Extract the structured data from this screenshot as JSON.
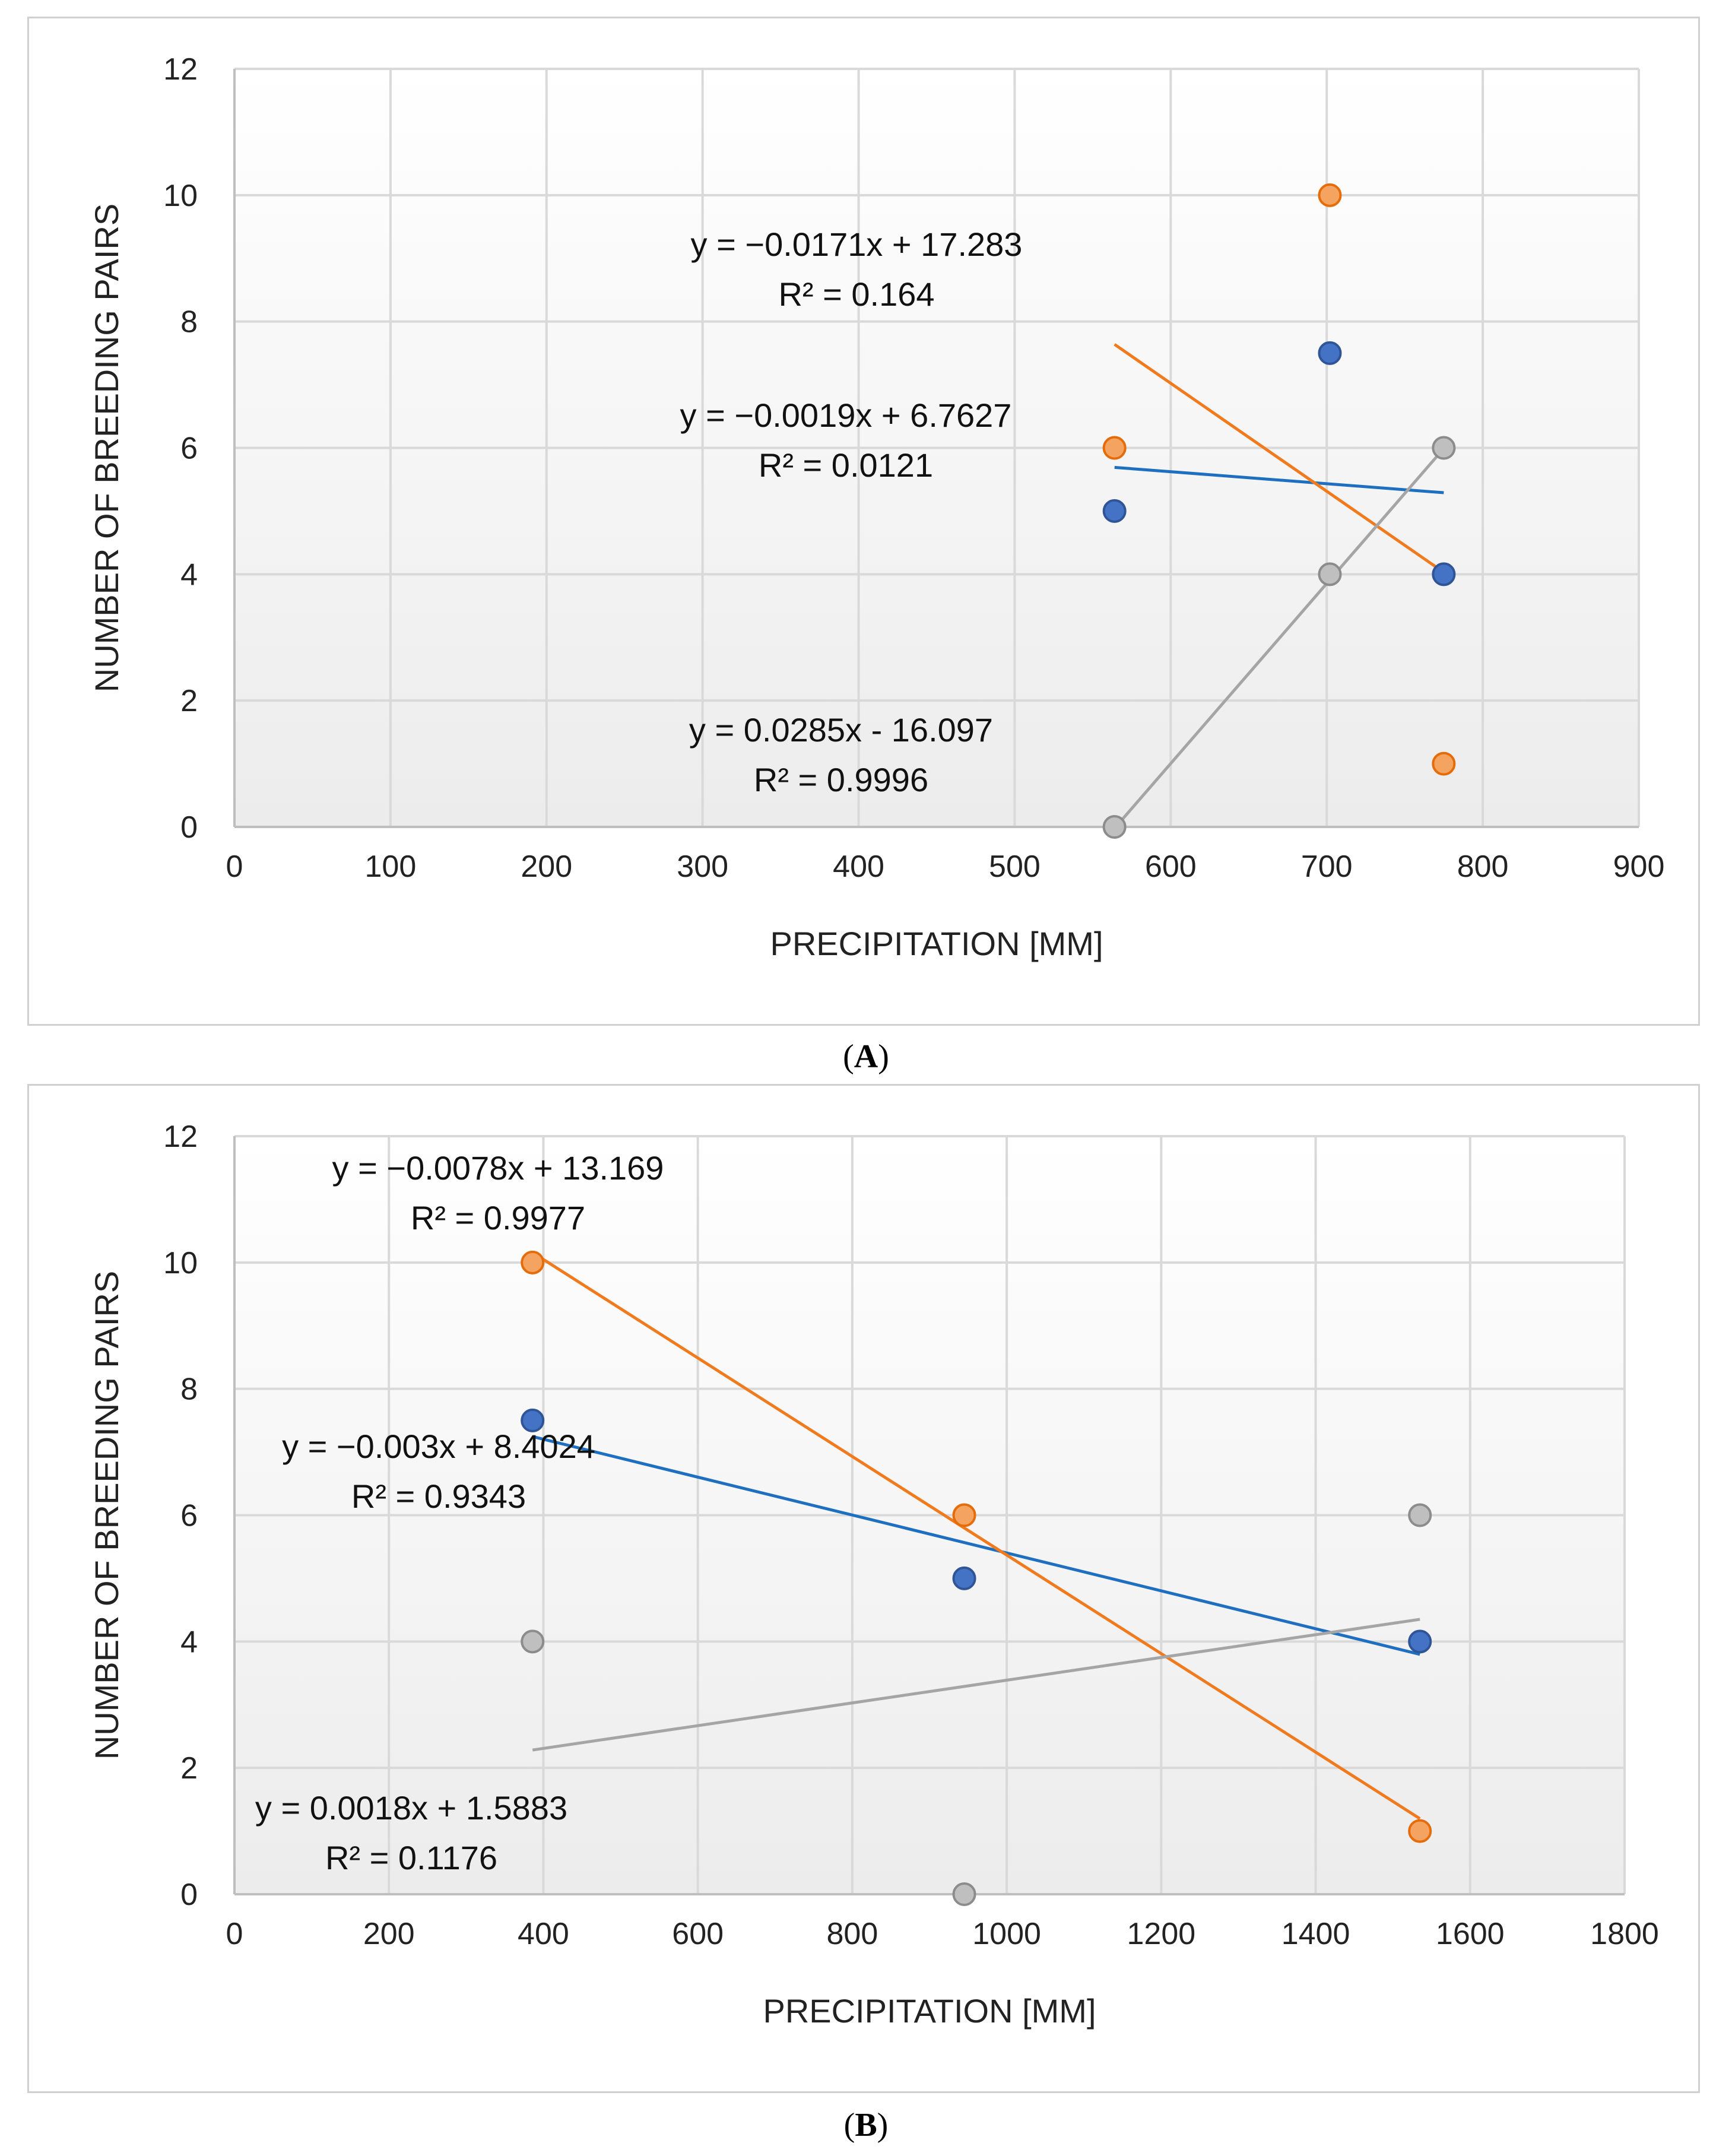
{
  "chart_data": [
    {
      "id": "A",
      "type": "scatter",
      "caption_label": "A",
      "xlabel": "PRECIPITATION [MM]",
      "ylabel": "NUMBER OF BREEDING PAIRS",
      "xlim": [
        0,
        900
      ],
      "ylim": [
        0,
        12
      ],
      "xticks": [
        0,
        100,
        200,
        300,
        400,
        500,
        600,
        700,
        800,
        900
      ],
      "yticks": [
        0,
        2,
        4,
        6,
        8,
        10,
        12
      ],
      "grid": true,
      "series": [
        {
          "name": "blue",
          "color": "#4472C4",
          "points": [
            [
              564,
              5
            ],
            [
              702,
              7.5
            ],
            [
              775,
              4
            ]
          ],
          "trendline": {
            "slope": -0.0019,
            "intercept": 6.7627,
            "x_range": [
              564,
              775
            ],
            "color": "#1F6FC0"
          },
          "equation": "y = −0.0019x + 6.7627",
          "r2": "R² = 0.0121"
        },
        {
          "name": "orange",
          "color": "#F4A460",
          "points": [
            [
              564,
              6
            ],
            [
              702,
              10
            ],
            [
              775,
              1
            ]
          ],
          "trendline": {
            "slope": -0.0171,
            "intercept": 17.283,
            "x_range": [
              564,
              775
            ],
            "color": "#F07B1F"
          },
          "equation": "y = −0.0171x + 17.283",
          "r2": "R² = 0.164"
        },
        {
          "name": "gray",
          "color": "#BFBFBF",
          "points": [
            [
              564,
              0
            ],
            [
              702,
              4
            ],
            [
              775,
              6
            ]
          ],
          "trendline": {
            "slope": 0.0285,
            "intercept": -16.097,
            "x_range": [
              564,
              775
            ],
            "color": "#A5A5A5"
          },
          "equation": "y = 0.0285x - 16.097",
          "r2": "R² = 0.9996"
        }
      ]
    },
    {
      "id": "B",
      "type": "scatter",
      "caption_label": "B",
      "xlabel": "PRECIPITATION [MM]",
      "ylabel": "NUMBER OF BREEDING PAIRS",
      "xlim": [
        0,
        1800
      ],
      "ylim": [
        0,
        12
      ],
      "xticks": [
        0,
        200,
        400,
        600,
        800,
        1000,
        1200,
        1400,
        1600,
        1800
      ],
      "yticks": [
        0,
        2,
        4,
        6,
        8,
        10,
        12
      ],
      "grid": true,
      "series": [
        {
          "name": "blue",
          "color": "#4472C4",
          "points": [
            [
              386,
              7.5
            ],
            [
              945,
              5
            ],
            [
              1535,
              4
            ]
          ],
          "trendline": {
            "slope": -0.003,
            "intercept": 8.4024,
            "x_range": [
              386,
              1535
            ],
            "color": "#1F6FC0"
          },
          "equation": "y = −0.003x + 8.4024",
          "r2": "R² = 0.9343"
        },
        {
          "name": "orange",
          "color": "#F4A460",
          "points": [
            [
              386,
              10
            ],
            [
              945,
              6
            ],
            [
              1535,
              1
            ]
          ],
          "trendline": {
            "slope": -0.0078,
            "intercept": 13.169,
            "x_range": [
              386,
              1535
            ],
            "color": "#F07B1F"
          },
          "equation": "y = −0.0078x + 13.169",
          "r2": "R² = 0.9977"
        },
        {
          "name": "gray",
          "color": "#BFBFBF",
          "points": [
            [
              386,
              4
            ],
            [
              945,
              0
            ],
            [
              1535,
              6
            ]
          ],
          "trendline": {
            "slope": 0.0018,
            "intercept": 1.5883,
            "x_range": [
              386,
              1535
            ],
            "color": "#A5A5A5"
          },
          "equation": "y = 0.0018x + 1.5883",
          "r2": "R² = 0.1176"
        }
      ]
    }
  ]
}
